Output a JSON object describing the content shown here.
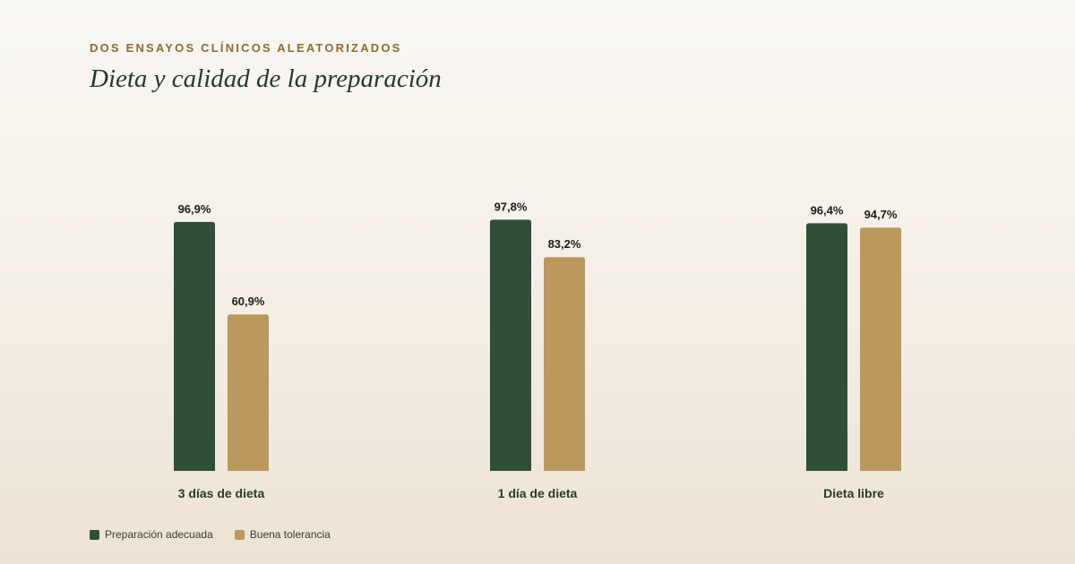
{
  "header": {
    "kicker": "DOS ENSAYOS CLÍNICOS ALEATORIZADOS",
    "title": "Dieta y calidad de la preparación"
  },
  "colors": {
    "kicker": "#8c6a35",
    "title": "#233a2b",
    "series_green": "#2f4f38",
    "series_gold": "#bb985d"
  },
  "chart_data": {
    "type": "bar",
    "categories": [
      "3 días de dieta",
      "1 día de dieta",
      "Dieta libre"
    ],
    "series": [
      {
        "name": "Preparación adecuada",
        "values": [
          96.9,
          97.8,
          96.4
        ],
        "labels": [
          "96,9%",
          "97,8%",
          "96,4%"
        ],
        "color": "#2f4f38"
      },
      {
        "name": "Buena tolerancia",
        "values": [
          60.9,
          83.2,
          94.7
        ],
        "labels": [
          "60,9%",
          "83,2%",
          "94,7%"
        ],
        "color": "#bb985d"
      }
    ],
    "title": "Dieta y calidad de la preparación",
    "xlabel": "",
    "ylabel": "",
    "ylim": [
      0,
      100
    ],
    "grid": false,
    "legend_position": "bottom-left"
  }
}
